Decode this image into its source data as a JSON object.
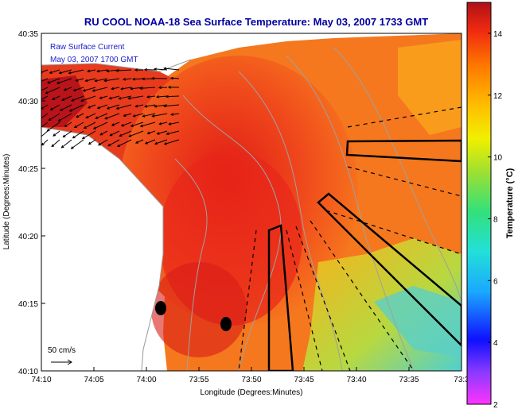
{
  "title": "RU COOL  NOAA-18  Sea Surface Temperature:  May 03, 2007 1733 GMT",
  "legend": {
    "line1": "Raw Surface Current",
    "line2": "May 03, 2007 1700 GMT"
  },
  "scale": {
    "label": "50 cm/s"
  },
  "x_axis": {
    "label": "Longitude (Degrees:Minutes)",
    "ticks": [
      "74:10",
      "74:05",
      "74:00",
      "73:55",
      "73:50",
      "73:45",
      "73:40",
      "73:35",
      "73:3"
    ]
  },
  "y_axis": {
    "label": "Latitude (Degrees:Minutes)",
    "ticks": [
      "40:35",
      "40:30",
      "40:25",
      "40:20",
      "40:15",
      "40:10"
    ]
  },
  "colorbar": {
    "label": "Temperature (°C)",
    "ticks": [
      "14",
      "12",
      "10",
      "8",
      "6",
      "4",
      "2"
    ],
    "range": [
      2,
      15
    ]
  },
  "colors": {
    "land": "#ffffff",
    "warm": "#e8261a",
    "mid": "#f7701d",
    "cool": "#fcc018",
    "cold": "#38c9e0",
    "title": "#0000a0"
  }
}
